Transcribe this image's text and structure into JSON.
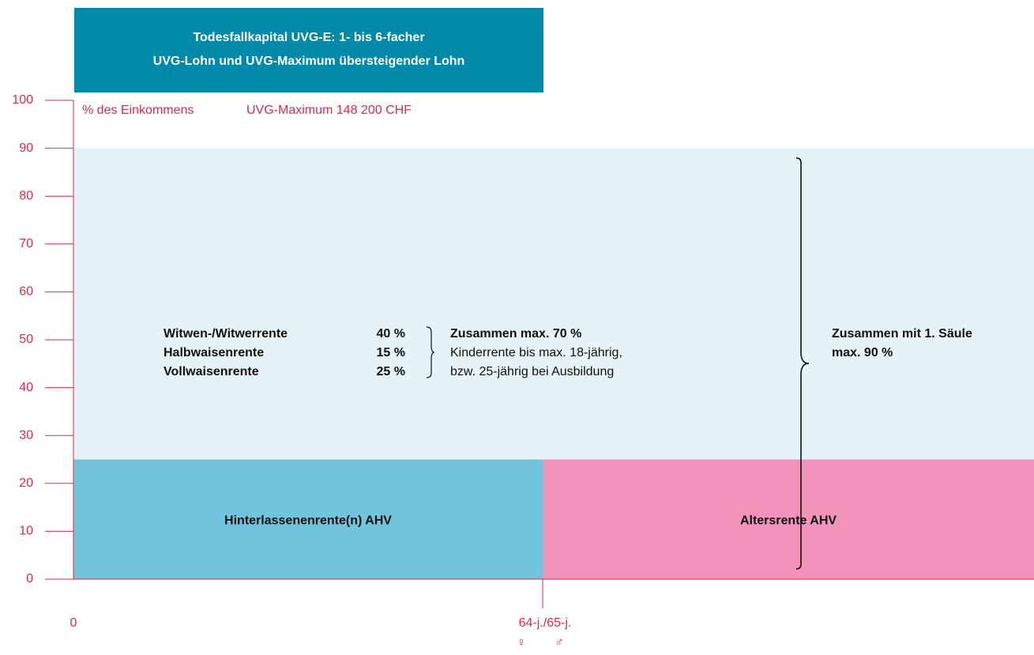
{
  "header": {
    "title": [
      "Todesfallkapital UVG-E: 1- bis 6-facher",
      "UVG-Lohn und UVG-Maximum übersteigender Lohn"
    ]
  },
  "axis": {
    "ylim": [
      0,
      100
    ],
    "yticks": [
      0,
      10,
      20,
      30,
      40,
      50,
      60,
      70,
      80,
      90,
      100
    ],
    "y_label": "% des Einkommens",
    "max_note": "UVG-Maximum 148 200 CHF",
    "x_start": "0",
    "x_mark": "64-j./65-j.",
    "female": "♀",
    "male": "♂"
  },
  "bands": [
    {
      "from": 25,
      "to": 90
    },
    {
      "label": "Hinterlassenenrente(n) AHV",
      "from": 0,
      "to": 25
    },
    {
      "label": "Altersrente AHV",
      "from": 0,
      "to": 25
    }
  ],
  "benefits": [
    {
      "name": "Witwen-/Witwerrente",
      "share": "40 %"
    },
    {
      "name": "Halbwaisenrente",
      "share": "15 %"
    },
    {
      "name": "Vollwaisenrente",
      "share": "25 %"
    }
  ],
  "combined": {
    "title": "Zusammen max. 70 %",
    "lines": [
      "Kinderrente bis max. 18-jährig,",
      "bzw. 25-jährig bei Ausbildung"
    ]
  },
  "total": [
    "Zusammen mit 1. Säule",
    "max. 90 %"
  ]
}
